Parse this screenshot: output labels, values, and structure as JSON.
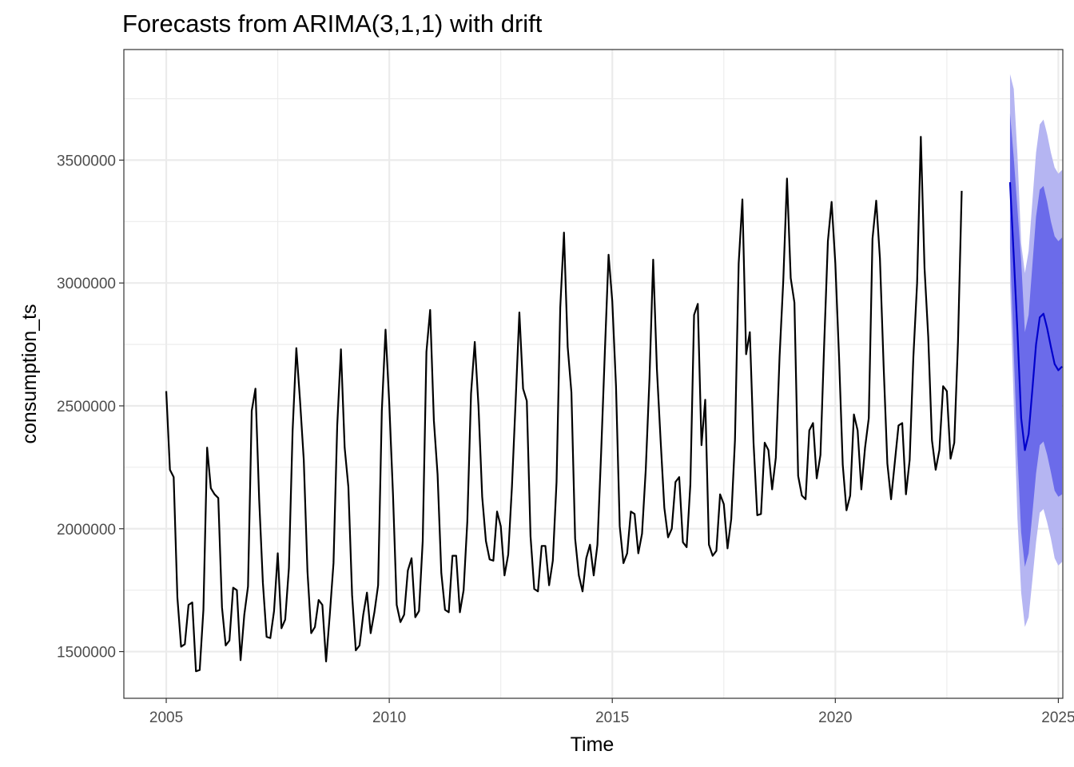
{
  "chart_data": {
    "type": "line",
    "title": "Forecasts from ARIMA(3,1,1) with drift",
    "xlabel": "Time",
    "ylabel": "consumption_ts",
    "xlim": [
      2004.05,
      2025.1
    ],
    "ylim": [
      1310000,
      3950000
    ],
    "x_ticks": [
      2005,
      2010,
      2015,
      2020,
      2025
    ],
    "x_tick_labels": [
      "2005",
      "2010",
      "2015",
      "2020",
      "2025"
    ],
    "y_ticks": [
      1500000,
      2000000,
      2500000,
      3000000,
      3500000
    ],
    "y_tick_labels": [
      "1500000",
      "2000000",
      "2500000",
      "3000000",
      "3500000"
    ],
    "grid": true,
    "legend": "none",
    "colors": {
      "history": "#000000",
      "forecast": "#0000cc",
      "band80": "#6b6bea",
      "band95": "#b5b5f2"
    },
    "history": {
      "start": [
        2005,
        1
      ],
      "frequency": 12,
      "values": [
        2560000,
        2240000,
        2210000,
        1720000,
        1520000,
        1530000,
        1690000,
        1700000,
        1420000,
        1425000,
        1670000,
        2330000,
        2165000,
        2140000,
        2125000,
        1680000,
        1525000,
        1545000,
        1760000,
        1750000,
        1465000,
        1650000,
        1765000,
        2480000,
        2570000,
        2120000,
        1780000,
        1560000,
        1555000,
        1665000,
        1900000,
        1595000,
        1630000,
        1840000,
        2400000,
        2735000,
        2520000,
        2280000,
        1825000,
        1575000,
        1600000,
        1710000,
        1690000,
        1460000,
        1650000,
        1860000,
        2420000,
        2730000,
        2330000,
        2170000,
        1730000,
        1505000,
        1525000,
        1650000,
        1740000,
        1575000,
        1660000,
        1770000,
        2480000,
        2810000,
        2510000,
        2140000,
        1690000,
        1620000,
        1650000,
        1830000,
        1880000,
        1640000,
        1665000,
        1950000,
        2720000,
        2890000,
        2440000,
        2220000,
        1820000,
        1670000,
        1660000,
        1890000,
        1890000,
        1660000,
        1750000,
        2030000,
        2550000,
        2760000,
        2500000,
        2130000,
        1950000,
        1875000,
        1870000,
        2070000,
        2010000,
        1810000,
        1895000,
        2170000,
        2520000,
        2880000,
        2570000,
        2520000,
        1970000,
        1755000,
        1745000,
        1930000,
        1930000,
        1770000,
        1870000,
        2190000,
        2900000,
        3205000,
        2740000,
        2555000,
        1960000,
        1810000,
        1745000,
        1880000,
        1935000,
        1810000,
        1935000,
        2310000,
        2720000,
        3115000,
        2925000,
        2580000,
        2010000,
        1860000,
        1900000,
        2070000,
        2060000,
        1900000,
        1980000,
        2240000,
        2610000,
        3095000,
        2650000,
        2360000,
        2085000,
        1965000,
        2000000,
        2190000,
        2210000,
        1945000,
        1925000,
        2180000,
        2870000,
        2915000,
        2340000,
        2525000,
        1935000,
        1890000,
        1910000,
        2140000,
        2100000,
        1920000,
        2040000,
        2360000,
        3080000,
        3340000,
        2710000,
        2800000,
        2350000,
        2055000,
        2060000,
        2350000,
        2320000,
        2160000,
        2290000,
        2700000,
        3010000,
        3425000,
        3020000,
        2920000,
        2215000,
        2135000,
        2120000,
        2400000,
        2430000,
        2205000,
        2300000,
        2750000,
        3170000,
        3330000,
        3080000,
        2700000,
        2260000,
        2075000,
        2135000,
        2465000,
        2400000,
        2160000,
        2330000,
        2450000,
        3180000,
        3335000,
        3100000,
        2660000,
        2265000,
        2120000,
        2270000,
        2420000,
        2430000,
        2140000,
        2280000,
        2700000,
        3000000,
        3595000,
        3060000,
        2780000,
        2360000,
        2240000,
        2320000,
        2580000,
        2560000,
        2285000,
        2350000,
        2760000,
        3375000
      ]
    },
    "forecast": {
      "start": [
        2023,
        12
      ],
      "frequency": 12,
      "mean": [
        3410000,
        3110000,
        2800000,
        2450000,
        2320000,
        2385000,
        2565000,
        2750000,
        2860000,
        2875000,
        2815000,
        2740000,
        2670000,
        2645000,
        2660000
      ],
      "lo80": [
        3140000,
        2720000,
        2300000,
        1985000,
        1845000,
        1900000,
        2060000,
        2225000,
        2340000,
        2355000,
        2300000,
        2230000,
        2155000,
        2130000,
        2140000
      ],
      "hi80": [
        3690000,
        3510000,
        3300000,
        3090000,
        2800000,
        2870000,
        3070000,
        3270000,
        3380000,
        3395000,
        3330000,
        3250000,
        3190000,
        3170000,
        3185000
      ],
      "lo95": [
        3000000,
        2510000,
        2040000,
        1740000,
        1600000,
        1640000,
        1790000,
        1945000,
        2065000,
        2080000,
        2025000,
        1960000,
        1880000,
        1850000,
        1865000
      ],
      "hi95": [
        3850000,
        3790000,
        3520000,
        3160000,
        3040000,
        3130000,
        3330000,
        3530000,
        3645000,
        3665000,
        3605000,
        3530000,
        3470000,
        3445000,
        3460000
      ]
    }
  }
}
